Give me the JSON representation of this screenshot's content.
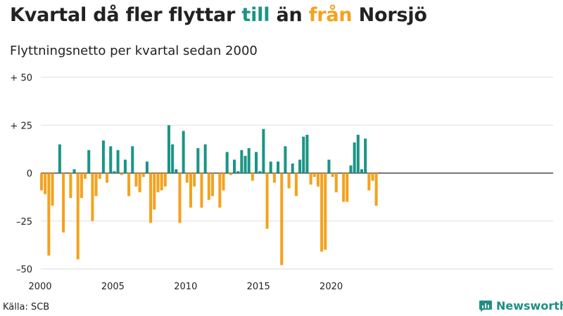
{
  "header": {
    "title_parts": [
      "Kvartal då fler flyttar ",
      "till",
      " än ",
      "från",
      " Norsjö"
    ],
    "subtitle": "Flyttningsnetto per kvartal sedan 2000"
  },
  "footer": {
    "source": "Källa: SCB",
    "brand": "Newsworthy"
  },
  "colors": {
    "positive": "#1a9585",
    "negative": "#f4a21d",
    "grid": "#dddddd",
    "zero_line": "#444444"
  },
  "chart_data": {
    "type": "bar",
    "title": "Kvartal då fler flyttar till än från Norsjö",
    "subtitle": "Flyttningsnetto per kvartal sedan 2000",
    "xlabel": "",
    "ylabel": "",
    "ylim": [
      -50,
      50
    ],
    "grid": true,
    "y_ticks": [
      {
        "value": 50,
        "label": "+ 50"
      },
      {
        "value": 25,
        "label": "+ 25"
      },
      {
        "value": 0,
        "label": "0"
      },
      {
        "value": -25,
        "label": "–25"
      },
      {
        "value": -50,
        "label": "–50"
      }
    ],
    "x_ticks": [
      {
        "year": 2000,
        "label": "2000"
      },
      {
        "year": 2005,
        "label": "2005"
      },
      {
        "year": 2010,
        "label": "2010"
      },
      {
        "year": 2015,
        "label": "2015"
      },
      {
        "year": 2020,
        "label": "2020"
      }
    ],
    "start_year": 2000,
    "quarters_per_year": 4,
    "values": [
      -9,
      -11,
      -43,
      -17,
      0,
      15,
      -31,
      0,
      -13,
      2,
      -45,
      -13,
      -3,
      12,
      -25,
      -12,
      -3,
      17,
      -5,
      14,
      1,
      12,
      -1,
      7,
      -12,
      14,
      -7,
      -10,
      -2,
      6,
      -26,
      -19,
      -10,
      -9,
      -7,
      25,
      15,
      2,
      -26,
      22,
      -5,
      -18,
      -7,
      13,
      -18,
      15,
      -14,
      -12,
      0,
      -18,
      -9,
      11,
      -1,
      7,
      1,
      12,
      9,
      13,
      -4,
      11,
      1,
      23,
      -29,
      6,
      -5,
      6,
      -48,
      14,
      -8,
      5,
      -12,
      7,
      19,
      20,
      -6,
      -2,
      -7,
      -41,
      -40,
      7,
      -2,
      -10,
      0,
      -15,
      -15,
      4,
      16,
      20,
      2,
      18,
      -9,
      -4,
      -17
    ]
  }
}
